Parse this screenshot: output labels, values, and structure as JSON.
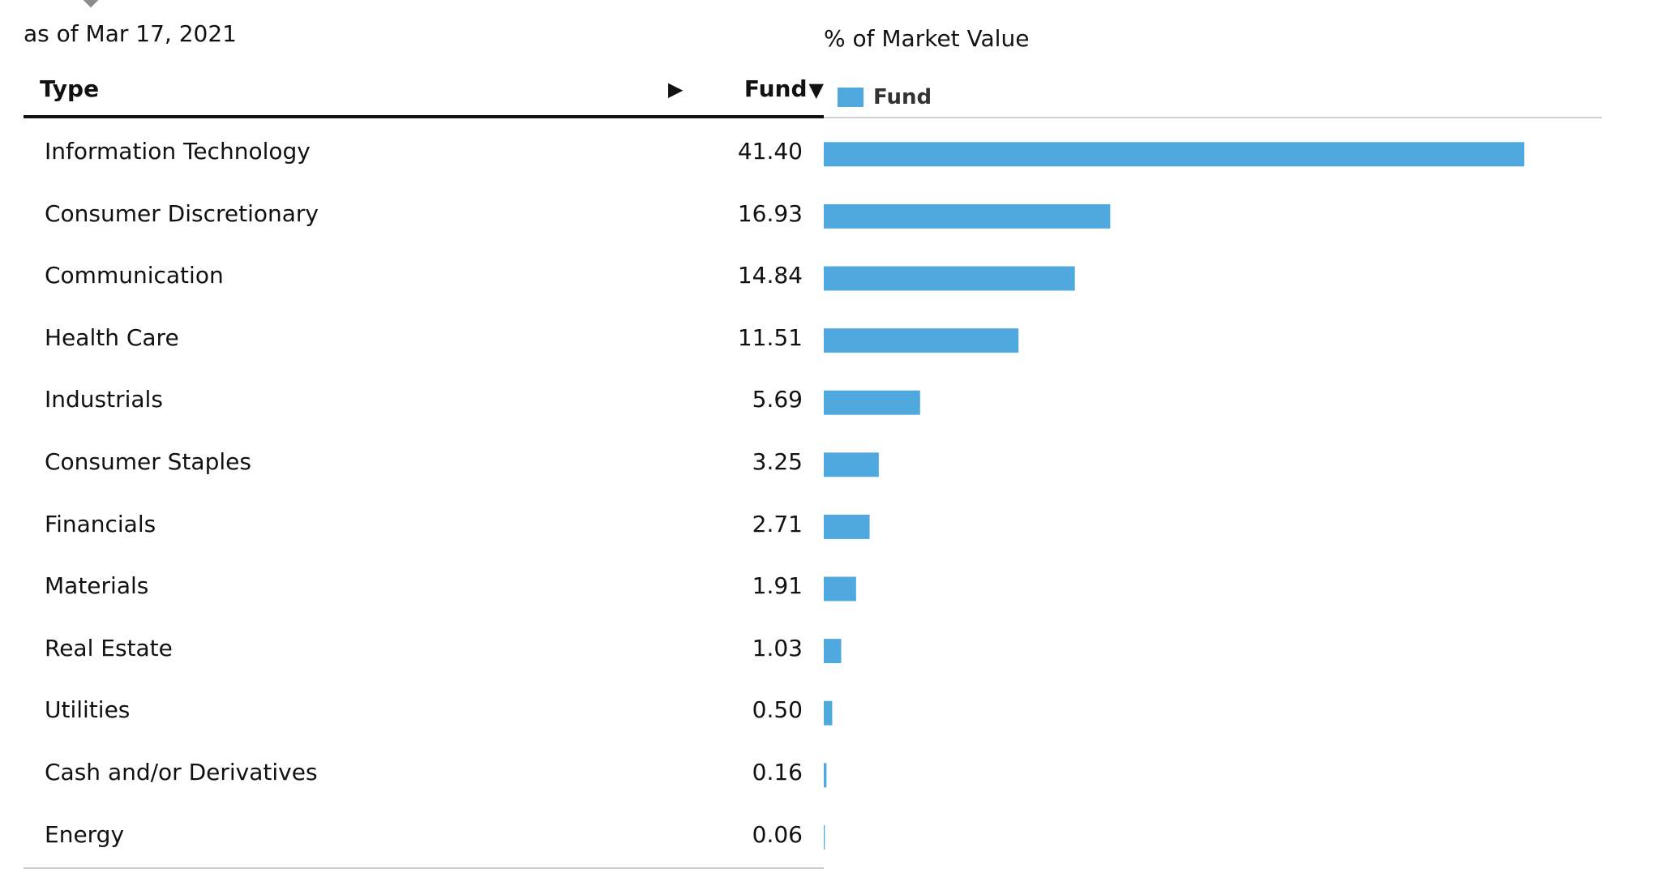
{
  "as_of": "as of Mar 17, 2021",
  "table": {
    "header_type": "Type",
    "header_fund": "Fund"
  },
  "chart_data": {
    "type": "bar",
    "orientation": "horizontal",
    "title": "% of Market Value",
    "series": [
      {
        "name": "Fund",
        "color": "#4fa9df",
        "values": [
          41.4,
          16.93,
          14.84,
          11.51,
          5.69,
          3.25,
          2.71,
          1.91,
          1.03,
          0.5,
          0.16,
          0.06
        ]
      }
    ],
    "categories": [
      "Information Technology",
      "Consumer Discretionary",
      "Communication",
      "Health Care",
      "Industrials",
      "Consumer Staples",
      "Financials",
      "Materials",
      "Real Estate",
      "Utilities",
      "Cash and/or Derivatives",
      "Energy"
    ],
    "value_labels": [
      "41.40",
      "16.93",
      "14.84",
      "11.51",
      "5.69",
      "3.25",
      "2.71",
      "1.91",
      "1.03",
      "0.50",
      "0.16",
      "0.06"
    ],
    "xlim": [
      0,
      46
    ],
    "legend_position": "top-left",
    "grid": false
  }
}
